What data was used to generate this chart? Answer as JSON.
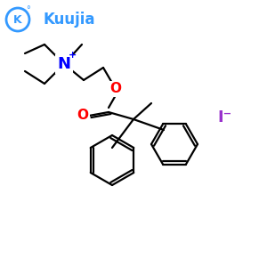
{
  "background_color": "#ffffff",
  "bond_color": "#000000",
  "N_color": "#0000ff",
  "O_color": "#ff0000",
  "I_color": "#9932cc",
  "logo_color": "#3399ff",
  "logo_text": "Kuujia",
  "iodide_label": "I⁻",
  "N_label": "N",
  "N_plus": "+",
  "O_label1": "O",
  "O_label2": "O",
  "figsize": [
    3.0,
    3.0
  ],
  "dpi": 100
}
